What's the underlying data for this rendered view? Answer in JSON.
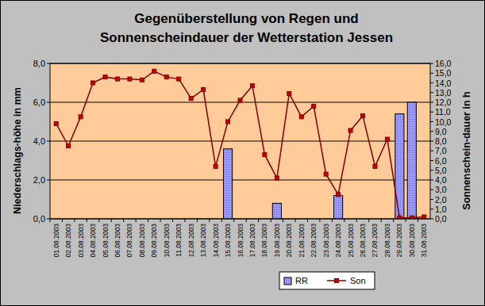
{
  "chart_data": {
    "type": "bar",
    "title": "Gegenüberstellung von Regen und\nSonnenscheindauer der Wetterstation Jessen",
    "y_label": "Niederschlags-höhe in mm",
    "y2_label": "Sonnenschein-dauer in h",
    "categories": [
      "01.08.2003",
      "02.08.2003",
      "03.08.2003",
      "04.08.2003",
      "05.08.2003",
      "06.08.2003",
      "07.08.2003",
      "08.08.2003",
      "09.08.2003",
      "10.08.2003",
      "11.08.2003",
      "12.08.2003",
      "13.08.2003",
      "14.08.2003",
      "15.08.2003",
      "16.08.2003",
      "17.08.2003",
      "18.08.2003",
      "19.08.2003",
      "20.08.2003",
      "21.08.2003",
      "22.08.2003",
      "23.08.2003",
      "24.08.2003",
      "25.08.2003",
      "26.08.2003",
      "27.08.2003",
      "28.08.2003",
      "29.08.2003",
      "30.08.2003",
      "31.08.2003"
    ],
    "series": [
      {
        "name": "RR",
        "type": "bar",
        "color": "#9999ff",
        "values": [
          0,
          0,
          0,
          0,
          0,
          0,
          0,
          0,
          0,
          0,
          0,
          0,
          0,
          0,
          3.6,
          0,
          0,
          0,
          0.8,
          0,
          0,
          0,
          0,
          1.2,
          0,
          0,
          0,
          0,
          5.4,
          6.0,
          0
        ]
      },
      {
        "name": "Son",
        "type": "line",
        "axis": "y2",
        "color": "#800000",
        "marker": "square",
        "values": [
          9.8,
          7.5,
          10.5,
          14.0,
          14.6,
          14.4,
          14.4,
          14.3,
          15.2,
          14.6,
          14.4,
          12.4,
          13.3,
          5.4,
          10.0,
          12.2,
          13.7,
          6.6,
          4.2,
          12.9,
          10.5,
          11.6,
          4.6,
          2.5,
          9.1,
          10.6,
          5.4,
          8.2,
          0.1,
          0.1,
          0.2
        ]
      }
    ],
    "ylim": [
      0,
      8
    ],
    "yticks": [
      {
        "value": 0,
        "label": "0,0"
      },
      {
        "value": 2,
        "label": "2,0"
      },
      {
        "value": 4,
        "label": "4,0"
      },
      {
        "value": 6,
        "label": "6,0"
      },
      {
        "value": 8,
        "label": "8,0"
      }
    ],
    "y2lim": [
      0,
      16
    ],
    "y2ticks": [
      {
        "value": 0,
        "label": "0,0"
      },
      {
        "value": 1,
        "label": "1,0"
      },
      {
        "value": 2,
        "label": "2,0"
      },
      {
        "value": 3,
        "label": "3,0"
      },
      {
        "value": 4,
        "label": "4,0"
      },
      {
        "value": 5,
        "label": "5,0"
      },
      {
        "value": 6,
        "label": "6,0"
      },
      {
        "value": 7,
        "label": "7,0"
      },
      {
        "value": 8,
        "label": "8,0"
      },
      {
        "value": 9,
        "label": "9,0"
      },
      {
        "value": 10,
        "label": "10,0"
      },
      {
        "value": 11,
        "label": "11,0"
      },
      {
        "value": 12,
        "label": "12,0"
      },
      {
        "value": 13,
        "label": "13,0"
      },
      {
        "value": 14,
        "label": "14,0"
      },
      {
        "value": 15,
        "label": "15,0"
      },
      {
        "value": 16,
        "label": "16,0"
      }
    ],
    "grid": true,
    "legend": "bottom"
  }
}
